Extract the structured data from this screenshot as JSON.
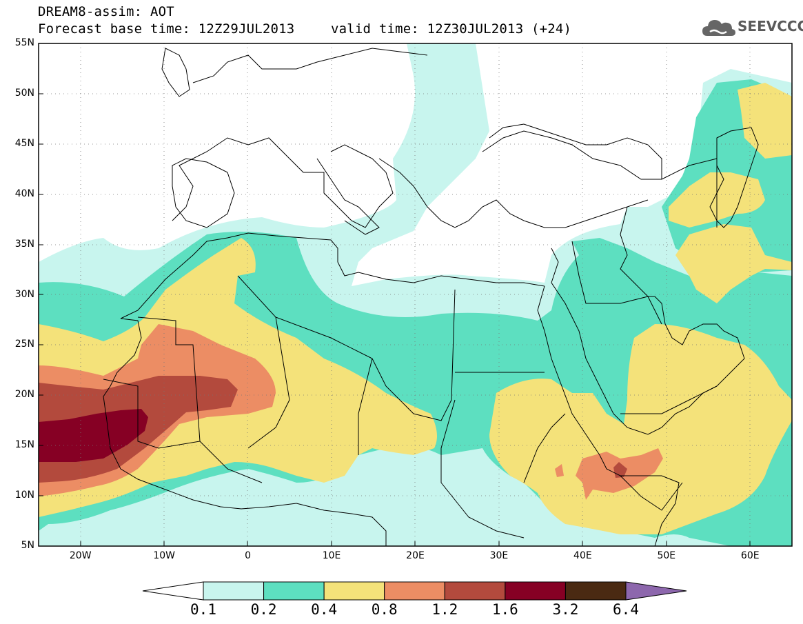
{
  "header": {
    "title": "DREAM8-assim: AOT",
    "base_time": "Forecast base time: 12Z29JUL2013",
    "valid_time": "valid time: 12Z30JUL2013 (+24)"
  },
  "logo": {
    "text": "SEEVCCC",
    "icon": "cloud-icon"
  },
  "map": {
    "lon_range": [
      -25,
      65
    ],
    "lat_range": [
      5,
      55
    ],
    "x_ticks": [
      "20W",
      "10W",
      "0",
      "10E",
      "20E",
      "30E",
      "40E",
      "50E",
      "60E"
    ],
    "y_ticks": [
      "5N",
      "10N",
      "15N",
      "20N",
      "25N",
      "30N",
      "35N",
      "40N",
      "45N",
      "50N",
      "55N"
    ],
    "grid": "dotted"
  },
  "legend": {
    "levels": [
      "0.1",
      "0.2",
      "0.4",
      "0.8",
      "1.2",
      "1.6",
      "3.2",
      "6.4"
    ],
    "colors": [
      "#ffffff",
      "#c8f5ee",
      "#5ddfc0",
      "#f4e27a",
      "#ec8d64",
      "#b34a3d",
      "#860024",
      "#4a2a12",
      "#8d67ad"
    ]
  }
}
